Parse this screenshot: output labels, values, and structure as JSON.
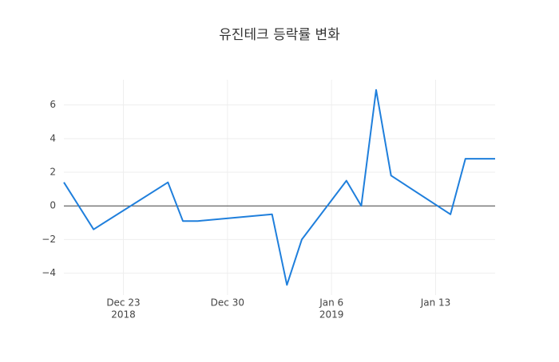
{
  "chart_data": {
    "type": "line",
    "title": "유진테크 등락률 변화",
    "x": [
      "2018-12-19",
      "2018-12-21",
      "2018-12-26",
      "2018-12-27",
      "2018-12-28",
      "2019-01-02",
      "2019-01-03",
      "2019-01-04",
      "2019-01-07",
      "2019-01-08",
      "2019-01-09",
      "2019-01-10",
      "2019-01-14",
      "2019-01-15",
      "2019-01-16",
      "2019-01-17"
    ],
    "series": [
      {
        "color": "#1f7fdc",
        "values": [
          1.4,
          -1.4,
          1.4,
          -0.9,
          -0.9,
          -0.5,
          -4.7,
          -2.0,
          1.5,
          0.0,
          6.9,
          1.8,
          -0.5,
          2.8,
          2.8,
          2.8
        ]
      }
    ],
    "xlim": [
      "2018-12-19",
      "2019-01-17"
    ],
    "xticks": [
      {
        "value": "2018-12-23",
        "label": "Dec 23",
        "year": "2018"
      },
      {
        "value": "2018-12-30",
        "label": "Dec 30"
      },
      {
        "value": "2019-01-06",
        "label": "Jan 6",
        "year": "2019"
      },
      {
        "value": "2019-01-13",
        "label": "Jan 13"
      }
    ],
    "ylim": [
      -5.3,
      7.5
    ],
    "yticks": [
      {
        "value": -4,
        "label": "−4"
      },
      {
        "value": -2,
        "label": "−2"
      },
      0,
      2,
      4,
      6
    ],
    "grid": true,
    "zeroline": true
  }
}
